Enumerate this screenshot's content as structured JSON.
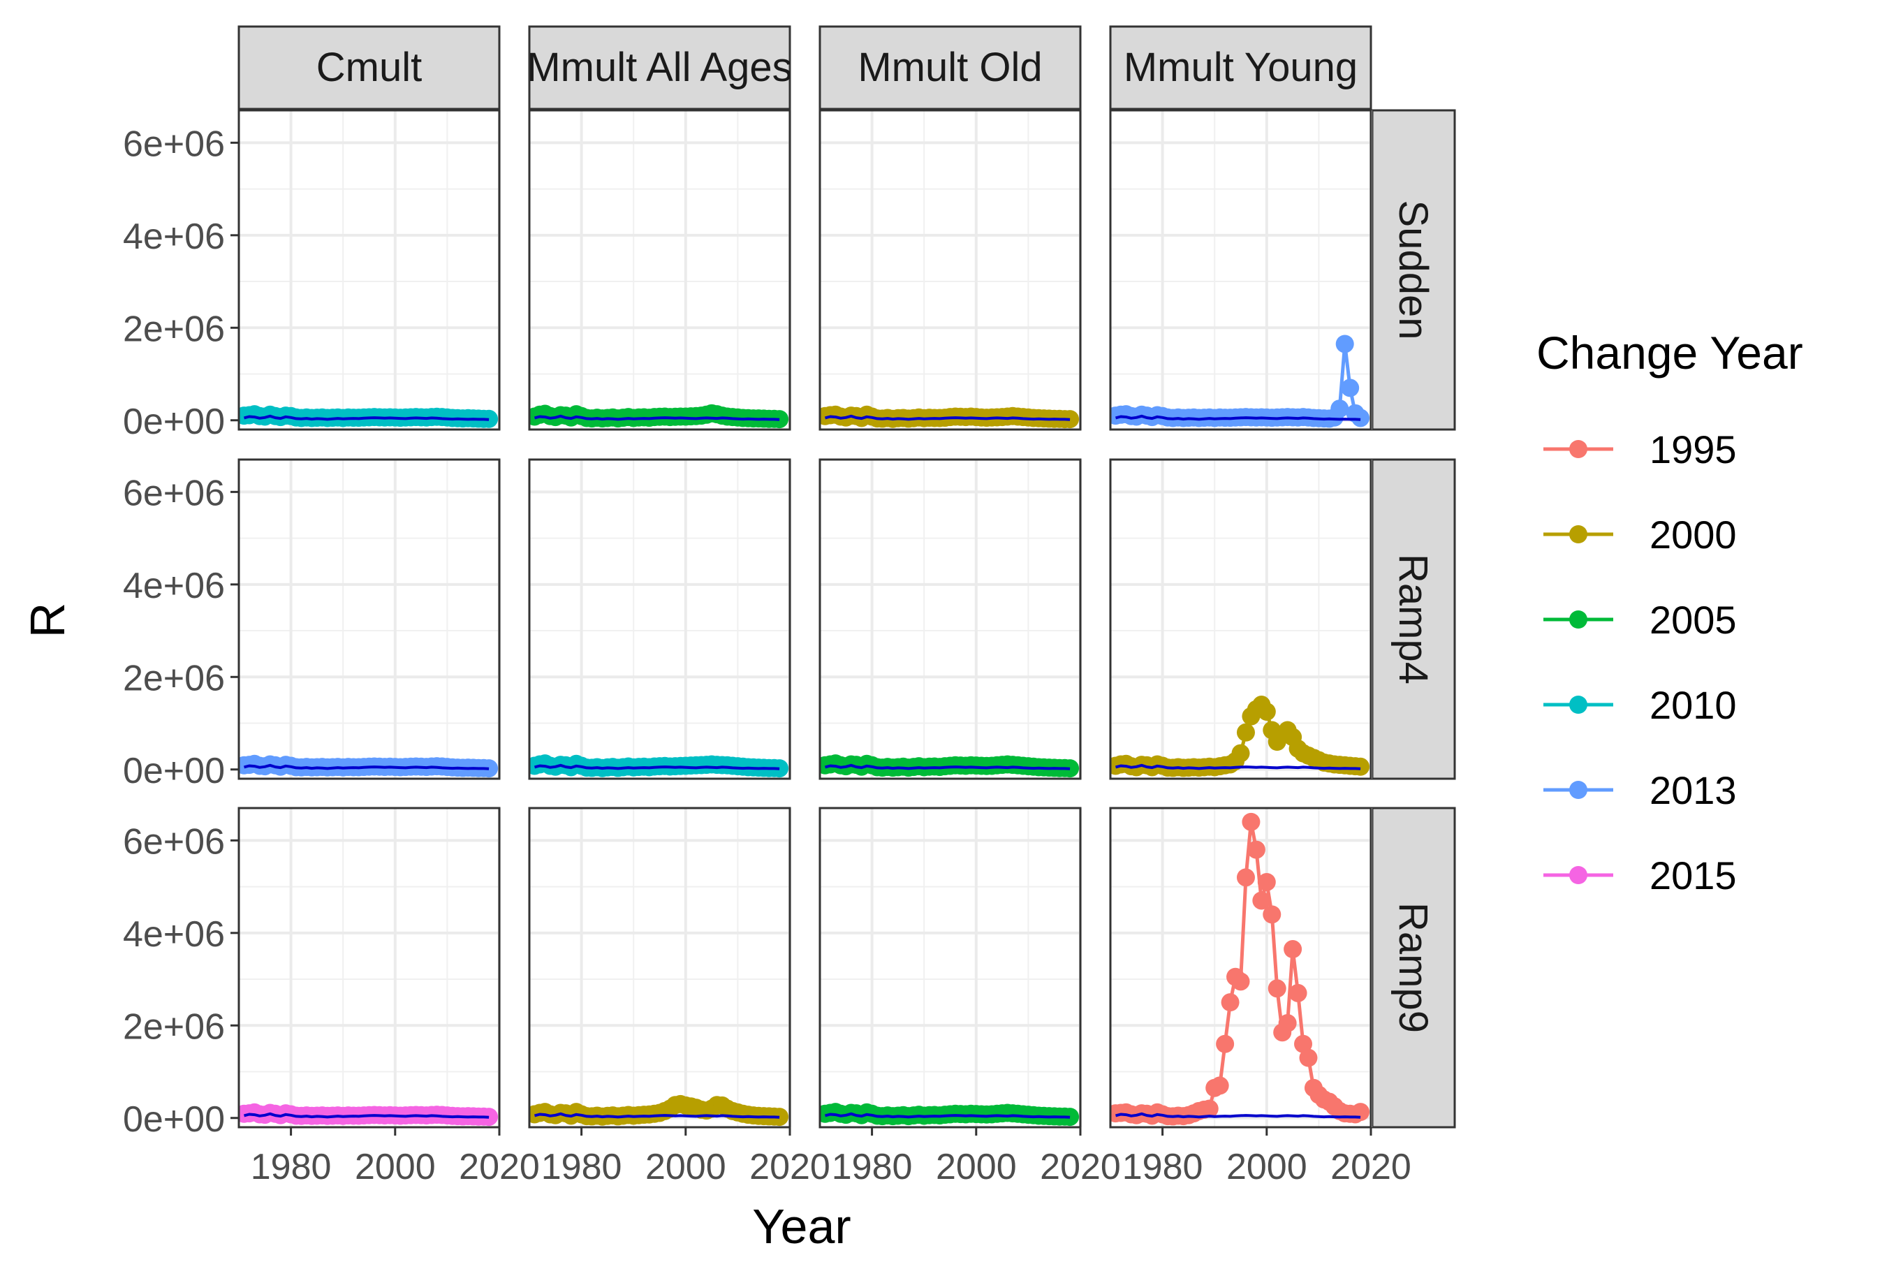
{
  "chart_data": {
    "type": "line",
    "xlabel": "Year",
    "ylabel": "R",
    "xlim": [
      1970,
      2020
    ],
    "ylim": [
      -200000,
      6700000
    ],
    "x_ticks": [
      1980,
      2000,
      2020
    ],
    "x_tick_labels": [
      "1980",
      "2000",
      "2020"
    ],
    "y_ticks": [
      0,
      2000000,
      4000000,
      6000000
    ],
    "y_tick_labels": [
      "0e+00",
      "2e+06",
      "4e+06",
      "6e+06"
    ],
    "grid": true,
    "legend": {
      "title": "Change Year",
      "placement": "right",
      "entries": [
        {
          "label": "1995",
          "color": "#F8766D"
        },
        {
          "label": "2000",
          "color": "#B79F00"
        },
        {
          "label": "2005",
          "color": "#00BA38"
        },
        {
          "label": "2010",
          "color": "#00BFC4"
        },
        {
          "label": "2013",
          "color": "#619CFF"
        },
        {
          "label": "2015",
          "color": "#F564E3"
        }
      ]
    },
    "columns": [
      "Cmult",
      "Mmult All Ages",
      "Mmult Old",
      "Mmult Young"
    ],
    "rows": [
      "Sudden",
      "Ramp4",
      "Ramp9"
    ],
    "reference_line_color": "#0000CC",
    "years": [
      1971,
      1972,
      1973,
      1974,
      1975,
      1976,
      1977,
      1978,
      1979,
      1980,
      1981,
      1982,
      1983,
      1984,
      1985,
      1986,
      1987,
      1988,
      1989,
      1990,
      1991,
      1992,
      1993,
      1994,
      1995,
      1996,
      1997,
      1998,
      1999,
      2000,
      2001,
      2002,
      2003,
      2004,
      2005,
      2006,
      2007,
      2008,
      2009,
      2010,
      2011,
      2012,
      2013,
      2014,
      2015,
      2016,
      2017,
      2018
    ],
    "reference_values": [
      50000,
      80000,
      70000,
      45000,
      60000,
      90000,
      55000,
      40000,
      75000,
      60000,
      35000,
      30000,
      40000,
      25000,
      35000,
      30000,
      20000,
      30000,
      40000,
      30000,
      35000,
      40000,
      35000,
      45000,
      50000,
      55000,
      50000,
      45000,
      50000,
      45000,
      40000,
      35000,
      45000,
      50000,
      45000,
      40000,
      50000,
      45000,
      35000,
      30000,
      25000,
      30000,
      25000,
      20000,
      25000,
      20000,
      20000,
      15000
    ],
    "panels": [
      {
        "row": "Sudden",
        "col": "Cmult",
        "change_year": "2010",
        "color": "#00BFC4",
        "values": [
          100000,
          110000,
          130000,
          90000,
          80000,
          120000,
          90000,
          70000,
          100000,
          90000,
          60000,
          50000,
          60000,
          50000,
          55000,
          60000,
          50000,
          55000,
          60000,
          50000,
          60000,
          55000,
          55000,
          60000,
          65000,
          70000,
          65000,
          60000,
          65000,
          60000,
          55000,
          60000,
          65000,
          70000,
          65000,
          60000,
          70000,
          75000,
          70000,
          60000,
          50000,
          45000,
          40000,
          45000,
          40000,
          35000,
          30000,
          30000
        ]
      },
      {
        "row": "Sudden",
        "col": "Mmult All Ages",
        "change_year": "2005",
        "color": "#00BA38",
        "values": [
          80000,
          120000,
          140000,
          90000,
          70000,
          110000,
          100000,
          60000,
          130000,
          90000,
          50000,
          40000,
          55000,
          40000,
          50000,
          60000,
          40000,
          55000,
          70000,
          50000,
          60000,
          65000,
          55000,
          70000,
          75000,
          80000,
          70000,
          75000,
          80000,
          80000,
          85000,
          90000,
          100000,
          120000,
          150000,
          130000,
          100000,
          80000,
          70000,
          60000,
          50000,
          45000,
          40000,
          40000,
          35000,
          30000,
          30000,
          25000
        ]
      },
      {
        "row": "Sudden",
        "col": "Mmult Old",
        "change_year": "2000",
        "color": "#B79F00",
        "values": [
          90000,
          110000,
          120000,
          80000,
          60000,
          100000,
          90000,
          50000,
          120000,
          80000,
          40000,
          35000,
          50000,
          30000,
          45000,
          50000,
          35000,
          45000,
          60000,
          45000,
          55000,
          50000,
          50000,
          55000,
          70000,
          80000,
          75000,
          70000,
          80000,
          70000,
          60000,
          55000,
          60000,
          65000,
          70000,
          80000,
          90000,
          80000,
          70000,
          60000,
          50000,
          45000,
          40000,
          35000,
          30000,
          30000,
          25000,
          25000
        ]
      },
      {
        "row": "Sudden",
        "col": "Mmult Young",
        "change_year": "2013",
        "color": "#619CFF",
        "values": [
          100000,
          120000,
          130000,
          90000,
          80000,
          120000,
          100000,
          70000,
          110000,
          90000,
          60000,
          50000,
          60000,
          50000,
          55000,
          60000,
          50000,
          55000,
          60000,
          50000,
          60000,
          55000,
          55000,
          60000,
          65000,
          70000,
          65000,
          60000,
          65000,
          60000,
          55000,
          60000,
          65000,
          70000,
          65000,
          60000,
          70000,
          60000,
          50000,
          45000,
          40000,
          35000,
          60000,
          250000,
          1650000,
          700000,
          150000,
          50000
        ]
      },
      {
        "row": "Ramp4",
        "col": "Cmult",
        "change_year": "2013",
        "color": "#619CFF",
        "values": [
          90000,
          100000,
          120000,
          80000,
          70000,
          110000,
          90000,
          60000,
          100000,
          80000,
          50000,
          45000,
          55000,
          45000,
          50000,
          55000,
          45000,
          50000,
          55000,
          45000,
          55000,
          50000,
          50000,
          55000,
          60000,
          65000,
          60000,
          55000,
          60000,
          55000,
          50000,
          55000,
          60000,
          65000,
          60000,
          55000,
          65000,
          70000,
          65000,
          55000,
          45000,
          40000,
          35000,
          40000,
          35000,
          30000,
          30000,
          25000
        ]
      },
      {
        "row": "Ramp4",
        "col": "Mmult All Ages",
        "change_year": "2010",
        "color": "#00BFC4",
        "values": [
          80000,
          110000,
          130000,
          80000,
          60000,
          100000,
          90000,
          50000,
          120000,
          80000,
          40000,
          35000,
          50000,
          30000,
          45000,
          55000,
          35000,
          50000,
          65000,
          45000,
          55000,
          60000,
          50000,
          65000,
          70000,
          75000,
          65000,
          70000,
          75000,
          80000,
          85000,
          90000,
          95000,
          100000,
          110000,
          100000,
          95000,
          90000,
          80000,
          70000,
          60000,
          50000,
          45000,
          40000,
          35000,
          30000,
          30000,
          25000
        ]
      },
      {
        "row": "Ramp4",
        "col": "Mmult Old",
        "change_year": "2005",
        "color": "#00BA38",
        "values": [
          90000,
          110000,
          130000,
          90000,
          70000,
          110000,
          100000,
          60000,
          120000,
          90000,
          50000,
          40000,
          55000,
          40000,
          50000,
          60000,
          40000,
          55000,
          70000,
          50000,
          60000,
          65000,
          55000,
          70000,
          80000,
          90000,
          85000,
          80000,
          90000,
          85000,
          80000,
          75000,
          80000,
          90000,
          100000,
          110000,
          100000,
          90000,
          80000,
          70000,
          60000,
          50000,
          45000,
          40000,
          35000,
          30000,
          30000,
          25000
        ]
      },
      {
        "row": "Ramp4",
        "col": "Mmult Young",
        "change_year": "2000",
        "color": "#B79F00",
        "values": [
          80000,
          110000,
          120000,
          70000,
          50000,
          100000,
          90000,
          50000,
          110000,
          80000,
          40000,
          35000,
          50000,
          35000,
          40000,
          50000,
          40000,
          50000,
          60000,
          50000,
          70000,
          90000,
          110000,
          180000,
          350000,
          800000,
          1150000,
          1300000,
          1400000,
          1250000,
          850000,
          600000,
          750000,
          850000,
          700000,
          450000,
          350000,
          300000,
          250000,
          200000,
          150000,
          130000,
          110000,
          100000,
          90000,
          80000,
          70000,
          60000
        ]
      },
      {
        "row": "Ramp9",
        "col": "Cmult",
        "change_year": "2015",
        "color": "#F564E3",
        "values": [
          90000,
          100000,
          120000,
          80000,
          70000,
          110000,
          90000,
          60000,
          100000,
          80000,
          50000,
          45000,
          55000,
          45000,
          50000,
          55000,
          45000,
          50000,
          55000,
          45000,
          55000,
          50000,
          50000,
          55000,
          60000,
          65000,
          60000,
          55000,
          60000,
          55000,
          50000,
          55000,
          60000,
          65000,
          60000,
          55000,
          65000,
          70000,
          65000,
          55000,
          45000,
          40000,
          35000,
          40000,
          35000,
          30000,
          30000,
          25000
        ]
      },
      {
        "row": "Ramp9",
        "col": "Mmult All Ages",
        "change_year": "2000",
        "color": "#B79F00",
        "values": [
          80000,
          110000,
          130000,
          80000,
          60000,
          110000,
          100000,
          50000,
          130000,
          80000,
          40000,
          35000,
          50000,
          30000,
          45000,
          55000,
          35000,
          50000,
          65000,
          50000,
          60000,
          70000,
          75000,
          90000,
          110000,
          150000,
          200000,
          280000,
          300000,
          270000,
          250000,
          220000,
          180000,
          160000,
          200000,
          280000,
          270000,
          200000,
          150000,
          120000,
          90000,
          70000,
          55000,
          45000,
          40000,
          35000,
          30000,
          25000
        ]
      },
      {
        "row": "Ramp9",
        "col": "Mmult Old",
        "change_year": "2005",
        "color": "#00BA38",
        "values": [
          90000,
          110000,
          130000,
          90000,
          70000,
          110000,
          100000,
          60000,
          120000,
          90000,
          50000,
          40000,
          55000,
          40000,
          50000,
          60000,
          40000,
          55000,
          70000,
          50000,
          60000,
          65000,
          55000,
          70000,
          80000,
          90000,
          85000,
          80000,
          90000,
          85000,
          80000,
          75000,
          80000,
          90000,
          100000,
          110000,
          100000,
          90000,
          80000,
          70000,
          60000,
          50000,
          45000,
          40000,
          35000,
          30000,
          30000,
          25000
        ]
      },
      {
        "row": "Ramp9",
        "col": "Mmult Young",
        "change_year": "1995",
        "color": "#F8766D",
        "values": [
          100000,
          110000,
          120000,
          80000,
          60000,
          100000,
          90000,
          50000,
          120000,
          80000,
          40000,
          35000,
          50000,
          40000,
          60000,
          100000,
          150000,
          180000,
          200000,
          650000,
          700000,
          1600000,
          2500000,
          3050000,
          2950000,
          5200000,
          6400000,
          5800000,
          4700000,
          5100000,
          4400000,
          2800000,
          1850000,
          2050000,
          3650000,
          2700000,
          1600000,
          1300000,
          650000,
          500000,
          400000,
          350000,
          250000,
          150000,
          100000,
          90000,
          80000,
          130000
        ]
      }
    ]
  }
}
